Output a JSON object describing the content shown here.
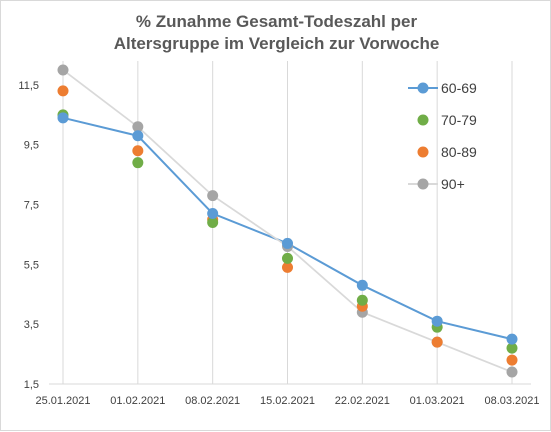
{
  "chart_data": {
    "type": "scatter",
    "title_line1": "% Zunahme Gesamt-Todeszahl per",
    "title_line2": "Altersgruppe im Vergleich zur Vorwoche",
    "xlabel": "",
    "ylabel": "",
    "x_ticks": [
      "25.01.2021",
      "01.02.2021",
      "08.02.2021",
      "15.02.2021",
      "22.02.2021",
      "01.03.2021",
      "08.03.2021"
    ],
    "y_ticks": [
      "1,5",
      "3,5",
      "5,5",
      "7,5",
      "9,5",
      "11,5"
    ],
    "ylim": [
      1.5,
      12.3
    ],
    "grid": "vertical",
    "legend_position": "right",
    "series": [
      {
        "name": "60-69",
        "color": "#5b9bd5",
        "line": true,
        "values": [
          10.4,
          9.8,
          7.2,
          6.2,
          4.8,
          3.6,
          3.0
        ]
      },
      {
        "name": "70-79",
        "color": "#70ad47",
        "line": false,
        "values": [
          10.5,
          8.9,
          6.9,
          5.7,
          4.3,
          3.4,
          2.7
        ]
      },
      {
        "name": "80-89",
        "color": "#ed7d31",
        "line": false,
        "values": [
          11.3,
          9.3,
          7.0,
          5.4,
          4.1,
          2.9,
          2.3
        ]
      },
      {
        "name": "90+",
        "color": "#a5a5a5",
        "line": true,
        "values": [
          12.0,
          10.1,
          7.8,
          6.1,
          3.9,
          2.9,
          1.9
        ]
      }
    ]
  }
}
